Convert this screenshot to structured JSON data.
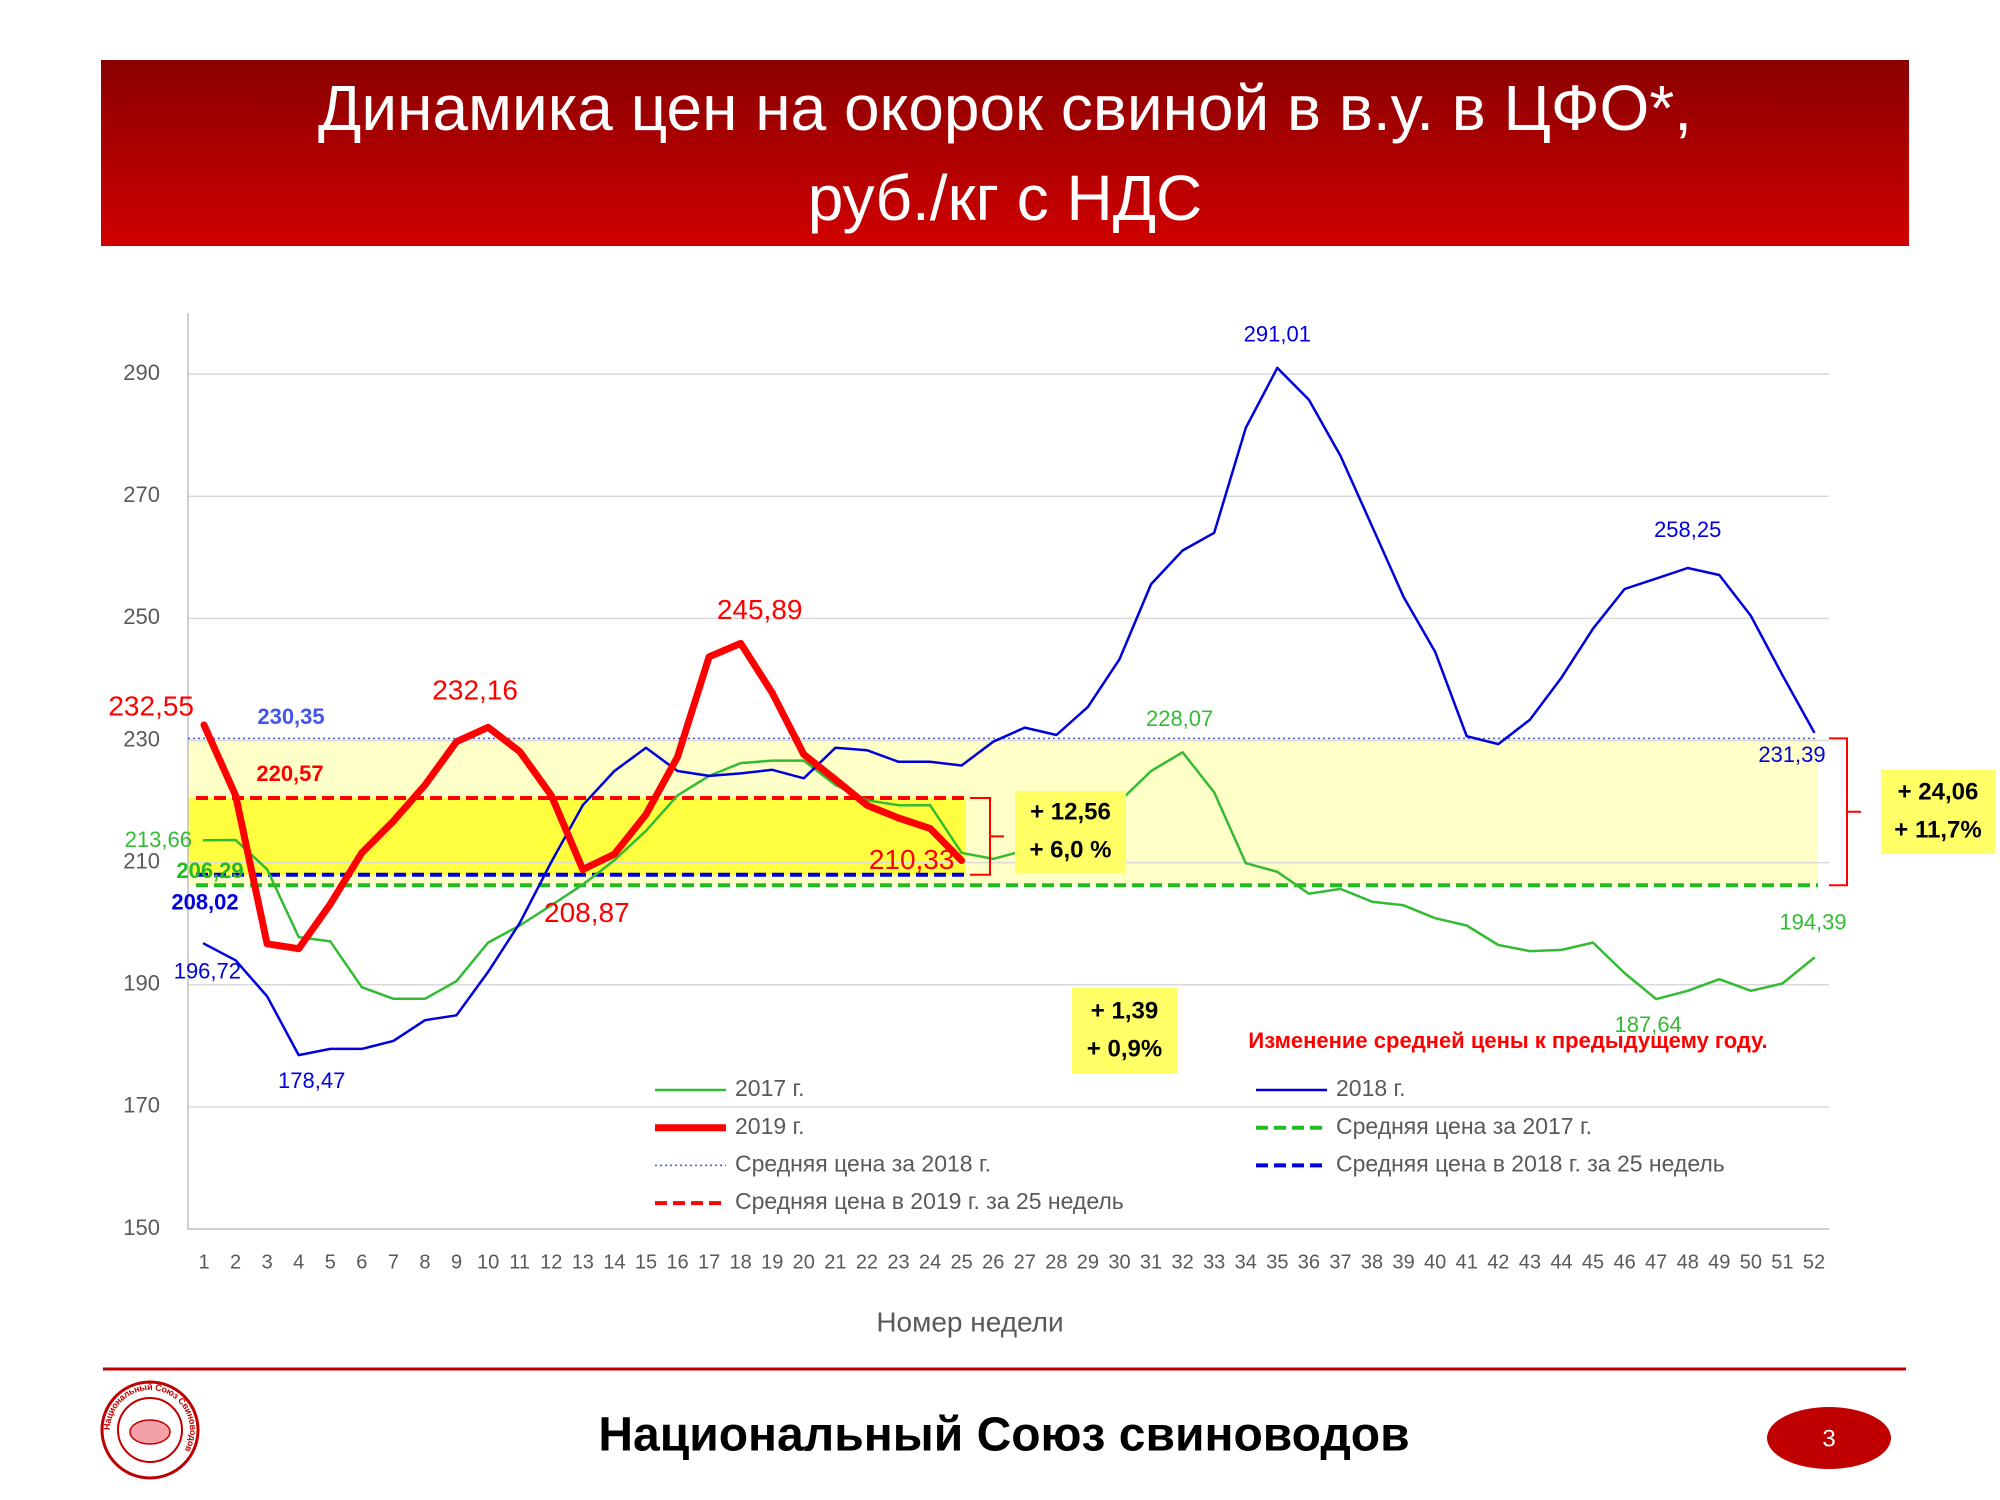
{
  "header": {
    "title_lines": [
      "Динамика цен на окорок свиной в в.у. в ЦФО*,",
      "руб./кг с НДС"
    ]
  },
  "chart_data": {
    "type": "line",
    "xlabel": "Номер недели",
    "categories": [
      1,
      2,
      3,
      4,
      5,
      6,
      7,
      8,
      9,
      10,
      11,
      12,
      13,
      14,
      15,
      16,
      17,
      18,
      19,
      20,
      21,
      22,
      23,
      24,
      25,
      26,
      27,
      28,
      29,
      30,
      31,
      32,
      33,
      34,
      35,
      36,
      37,
      38,
      39,
      40,
      41,
      42,
      43,
      44,
      45,
      46,
      47,
      48,
      49,
      50,
      51,
      52
    ],
    "ylim": [
      150,
      300
    ],
    "yticks": [
      150,
      170,
      190,
      210,
      230,
      250,
      270,
      290
    ],
    "grid": true,
    "series": [
      {
        "name": "2017 г.",
        "color": "#33bb33",
        "values": [
          213.66,
          213.7,
          208.9,
          197.8,
          197.1,
          189.6,
          187.7,
          187.7,
          190.6,
          196.9,
          199.7,
          203,
          206.4,
          210.4,
          215.2,
          221,
          224.2,
          226.3,
          226.7,
          226.7,
          222.7,
          220.2,
          219.4,
          219.4,
          211.6,
          210.6,
          212,
          213.1,
          215.8,
          220,
          225,
          228.07,
          221.5,
          209.9,
          208.5,
          204.9,
          205.7,
          203.6,
          203,
          200.9,
          199.7,
          196.5,
          195.5,
          195.7,
          196.9,
          191.9,
          187.64,
          189,
          190.9,
          189,
          190.2,
          194.39
        ],
        "value_labels": [
          "213,66",
          null,
          null,
          null,
          null,
          null,
          null,
          null,
          null,
          null,
          null,
          null,
          null,
          null,
          null,
          null,
          null,
          null,
          null,
          null,
          null,
          null,
          null,
          null,
          null,
          null,
          null,
          null,
          null,
          null,
          null,
          "228,07",
          null,
          null,
          null,
          null,
          null,
          null,
          null,
          null,
          null,
          null,
          null,
          null,
          null,
          null,
          "187,64",
          null,
          null,
          null,
          null,
          "194,39"
        ]
      },
      {
        "name": "2018 г.",
        "color": "#0000dd",
        "values": [
          196.72,
          194,
          188.1,
          178.47,
          179.5,
          179.5,
          180.8,
          184.2,
          185,
          192.1,
          200.1,
          210.1,
          219.4,
          225,
          228.8,
          225,
          224.2,
          224.6,
          225.2,
          223.8,
          228.8,
          228.4,
          226.5,
          226.5,
          225.9,
          229.8,
          232.1,
          230.9,
          235.5,
          243.3,
          255.6,
          261.1,
          264,
          281.2,
          291.01,
          285.8,
          276.6,
          265.1,
          253.5,
          244.5,
          230.7,
          229.4,
          233.4,
          240.3,
          248.3,
          254.8,
          256.5,
          258.25,
          257.1,
          250.4,
          240.7,
          231.39
        ],
        "value_labels": [
          "196,72",
          null,
          null,
          "178,47",
          null,
          null,
          null,
          null,
          null,
          null,
          null,
          null,
          null,
          null,
          null,
          null,
          null,
          null,
          null,
          null,
          null,
          null,
          null,
          null,
          null,
          null,
          null,
          null,
          null,
          null,
          null,
          null,
          null,
          null,
          "291,01",
          null,
          null,
          null,
          null,
          null,
          null,
          null,
          null,
          null,
          null,
          null,
          null,
          "258,25",
          null,
          null,
          null,
          "231,39"
        ]
      },
      {
        "name": "2019 г.",
        "color": "#ff0000",
        "style": "bold",
        "values": [
          232.55,
          221,
          196.7,
          195.9,
          203.2,
          211.6,
          216.8,
          222.7,
          229.8,
          232.16,
          228.2,
          221,
          208.87,
          211.4,
          217.9,
          227.3,
          243.7,
          245.89,
          237.8,
          227.7,
          223.6,
          219.4,
          217.3,
          215.6,
          210.33,
          null,
          null,
          null,
          null,
          null,
          null,
          null,
          null,
          null,
          null,
          null,
          null,
          null,
          null,
          null,
          null,
          null,
          null,
          null,
          null,
          null,
          null,
          null,
          null,
          null,
          null,
          null
        ],
        "value_labels": [
          "232,55",
          null,
          null,
          null,
          null,
          null,
          null,
          null,
          null,
          "232,16",
          null,
          null,
          "208,87",
          null,
          null,
          null,
          null,
          "245,89",
          null,
          null,
          null,
          null,
          null,
          null,
          "210,33",
          null,
          null,
          null,
          null,
          null,
          null,
          null,
          null,
          null,
          null,
          null,
          null,
          null,
          null,
          null,
          null,
          null,
          null,
          null,
          null,
          null,
          null,
          null,
          null,
          null,
          null,
          null
        ]
      }
    ],
    "reference_lines": [
      {
        "name": "Средняя цена за 2017 г.",
        "color": "#22bb22",
        "style": "dashed",
        "value": 206.29,
        "label": "206,29",
        "x_range": [
          1,
          52
        ]
      },
      {
        "name": "Средняя цена за 2018 г.",
        "color": "#4455ee",
        "style": "dotted",
        "value": 230.35,
        "label": "230,35",
        "x_range": [
          1,
          52
        ]
      },
      {
        "name": "Средняя цена в 2018 г. за 25 недель",
        "color": "#0000dd",
        "style": "dashed",
        "value": 208.02,
        "label": "208,02",
        "x_range": [
          1,
          25
        ]
      },
      {
        "name": "Средняя цена в 2019 г. за 25 недель",
        "color": "#ff0000",
        "style": "dashed",
        "value": 220.57,
        "label": "220,57",
        "x_range": [
          1,
          25
        ]
      }
    ],
    "bands": [
      {
        "color": "#ffffc8"
      },
      {
        "color": "#ffff40"
      }
    ],
    "comparisons": [
      {
        "texts": [
          "+ 12,56",
          "+ 6,0 %"
        ]
      },
      {
        "texts": [
          "+ 24,06",
          "+ 11,7%"
        ]
      },
      {
        "texts": [
          "+ 1,39",
          "+ 0,9%"
        ]
      }
    ],
    "note": "Изменение средней цены к предыдущему году."
  },
  "footer": {
    "organization": "Национальный Союз свиноводов",
    "page_number": 3,
    "logo_text": "Национальный Союз Свиноводов"
  }
}
